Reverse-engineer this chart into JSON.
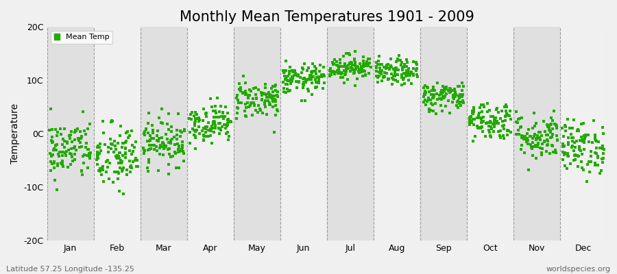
{
  "title": "Monthly Mean Temperatures 1901 - 2009",
  "ylabel": "Temperature",
  "xlabel": "",
  "ylim": [
    -20,
    20
  ],
  "yticks": [
    -20,
    -10,
    0,
    10,
    20
  ],
  "ytick_labels": [
    "-20C",
    "-10C",
    "0C",
    "10C",
    "20C"
  ],
  "months": [
    "Jan",
    "Feb",
    "Mar",
    "Apr",
    "May",
    "Jun",
    "Jul",
    "Aug",
    "Sep",
    "Oct",
    "Nov",
    "Dec"
  ],
  "dot_color": "#22aa00",
  "outer_bg": "#f0f0f0",
  "plot_bg_light": "#f0f0f0",
  "plot_bg_dark": "#e0e0e0",
  "title_fontsize": 15,
  "legend_label": "Mean Temp",
  "subtitle_left": "Latitude 57.25 Longitude -135.25",
  "subtitle_right": "worldspecies.org",
  "monthly_means": [
    -3.0,
    -4.5,
    -1.5,
    2.0,
    6.5,
    10.2,
    12.5,
    11.5,
    7.0,
    2.5,
    -0.5,
    -2.5
  ],
  "monthly_stds": [
    2.8,
    3.2,
    2.2,
    1.8,
    1.8,
    1.4,
    1.2,
    1.2,
    1.4,
    1.8,
    2.2,
    2.5
  ],
  "n_years": 109,
  "seed": 42
}
